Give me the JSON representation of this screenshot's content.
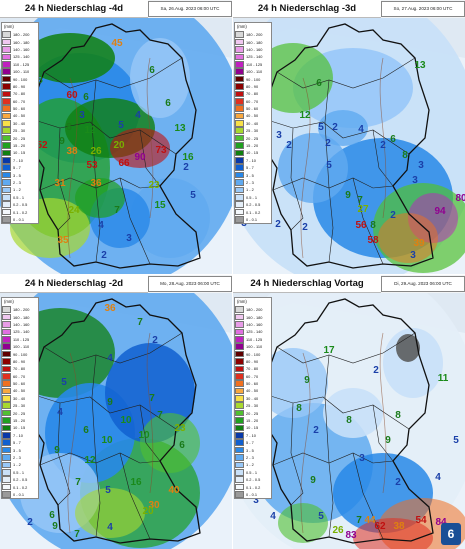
{
  "panels": [
    {
      "title": "24 h Niederschlag -4d",
      "date": "Sa, 26.Aug. 2023 06:00 UTC"
    },
    {
      "title": "24 h Niederschlag -3d",
      "date": "So, 27.Aug. 2023 06:00 UTC"
    },
    {
      "title": "24 h Niederschlag -2d",
      "date": "Mo, 28.Aug. 2023 06:00 UTC"
    },
    {
      "title": "24 h Niederschlag Vortag",
      "date": "Di, 29.Aug. 2023 06:00 UTC"
    }
  ],
  "legend": {
    "unit": "(mm)",
    "items": [
      {
        "label": "180 - 200",
        "color": "#d8d8d8"
      },
      {
        "label": "160 - 180",
        "color": "#f0c8f0"
      },
      {
        "label": "140 - 160",
        "color": "#e89ce8"
      },
      {
        "label": "125 - 140",
        "color": "#e070e0"
      },
      {
        "label": "110 - 125",
        "color": "#c020c0"
      },
      {
        "label": "100 - 110",
        "color": "#900090"
      },
      {
        "label": "90 - 100",
        "color": "#600000"
      },
      {
        "label": "80 - 90",
        "color": "#8c0000"
      },
      {
        "label": "70 - 80",
        "color": "#c01010"
      },
      {
        "label": "60 - 70",
        "color": "#e03020"
      },
      {
        "label": "50 - 60",
        "color": "#f07020"
      },
      {
        "label": "40 - 50",
        "color": "#f8a840"
      },
      {
        "label": "30 - 40",
        "color": "#f8e048"
      },
      {
        "label": "25 - 30",
        "color": "#a8d830"
      },
      {
        "label": "20 - 25",
        "color": "#50c030"
      },
      {
        "label": "15 - 20",
        "color": "#20a020"
      },
      {
        "label": "10 - 15",
        "color": "#108010"
      },
      {
        "label": "7 - 10",
        "color": "#0838a8"
      },
      {
        "label": "5 - 7",
        "color": "#1060d0"
      },
      {
        "label": "3 - 5",
        "color": "#2888e8"
      },
      {
        "label": "2 - 3",
        "color": "#60aaf0"
      },
      {
        "label": "1 - 2",
        "color": "#98c8f8"
      },
      {
        "label": "0.5 - 1",
        "color": "#c8e0f8"
      },
      {
        "label": "0.2 - 0.5",
        "color": "#e4eef8"
      },
      {
        "label": "0.1 - 0.2",
        "color": "#f4f8fc"
      },
      {
        "label": "0 - 0.1",
        "color": "#9a9a9a"
      }
    ]
  },
  "station_values": [
    [
      "8",
      "45",
      "6",
      "60",
      "6",
      "3",
      "8",
      "12",
      "9",
      "5",
      "4",
      "52",
      "38",
      "26",
      "20",
      "53",
      "66",
      "90",
      "73",
      "13",
      "16",
      "5",
      "6",
      "31",
      "36",
      "23",
      "2",
      "24",
      "7",
      "15",
      "4",
      "35",
      "3",
      "2"
    ],
    [
      "7",
      "13",
      "6",
      "12",
      "5",
      "2",
      "3",
      "2",
      "4",
      "2",
      "6",
      "2",
      "8",
      "3",
      "5",
      "9",
      "7",
      "2",
      "3",
      "8",
      "80",
      "3",
      "2",
      "27",
      "2",
      "56",
      "58",
      "94",
      "39",
      "3"
    ],
    [
      "36",
      "7",
      "4",
      "2",
      "5",
      "7",
      "9",
      "4",
      "3",
      "10",
      "6",
      "10",
      "7",
      "10",
      "9",
      "6",
      "12",
      "23",
      "7",
      "16",
      "5",
      "40",
      "30",
      "20",
      "6",
      "9",
      "4",
      "7",
      "2"
    ],
    [
      "17",
      "9",
      "2",
      "11",
      "8",
      "8",
      "2",
      "8",
      "9",
      "3",
      "7",
      "9",
      "2",
      "3",
      "4",
      "5",
      "7",
      "26",
      "44",
      "38",
      "83",
      "62",
      "54",
      "84",
      "4",
      "5"
    ]
  ],
  "logo_text": "6"
}
